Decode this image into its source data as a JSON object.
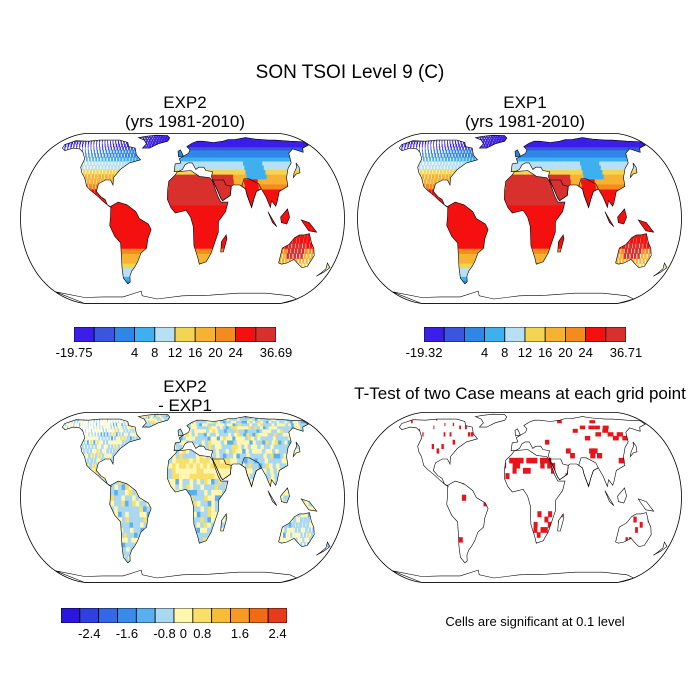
{
  "title": "SON TSOI Level 9 (C)",
  "panels": {
    "exp2": {
      "title": "EXP2",
      "subtitle": "(yrs 1981-2010)"
    },
    "exp1": {
      "title": "EXP1",
      "subtitle": "(yrs 1981-2010)"
    },
    "diff": {
      "title": "EXP2",
      "subtitle": "- EXP1"
    },
    "ttest": {
      "title": "T-Test of two Case means at each grid point",
      "note": "Cells are significant at 0.1 level"
    }
  },
  "colorbars": {
    "exp2": {
      "colors": [
        "#3b1ee8",
        "#3a55e0",
        "#2e86e6",
        "#3fb0ef",
        "#b8e0f4",
        "#f3d552",
        "#f7b232",
        "#f58a1f",
        "#f51010",
        "#d8302c"
      ],
      "labels": [
        "-19.75",
        "4",
        "8",
        "12",
        "16",
        "20",
        "24",
        "36.69"
      ]
    },
    "exp1": {
      "colors": [
        "#3b1ee8",
        "#3a55e0",
        "#2e86e6",
        "#3fb0ef",
        "#b8e0f4",
        "#f3d552",
        "#f7b232",
        "#f58a1f",
        "#f51010",
        "#d8302c"
      ],
      "labels": [
        "-19.32",
        "4",
        "8",
        "12",
        "16",
        "20",
        "24",
        "36.71"
      ]
    },
    "diff": {
      "colors": [
        "#2a16e0",
        "#2f3fe0",
        "#3568e8",
        "#3a8ae8",
        "#5ab0ef",
        "#a9d8f0",
        "#fff6b0",
        "#f7df6a",
        "#f5be36",
        "#f59a22",
        "#f26a16",
        "#e73a1c"
      ],
      "labels": [
        "-2.4",
        "-1.6",
        "-0.8",
        "0",
        "0.8",
        "1.6",
        "2.4"
      ]
    }
  }
}
